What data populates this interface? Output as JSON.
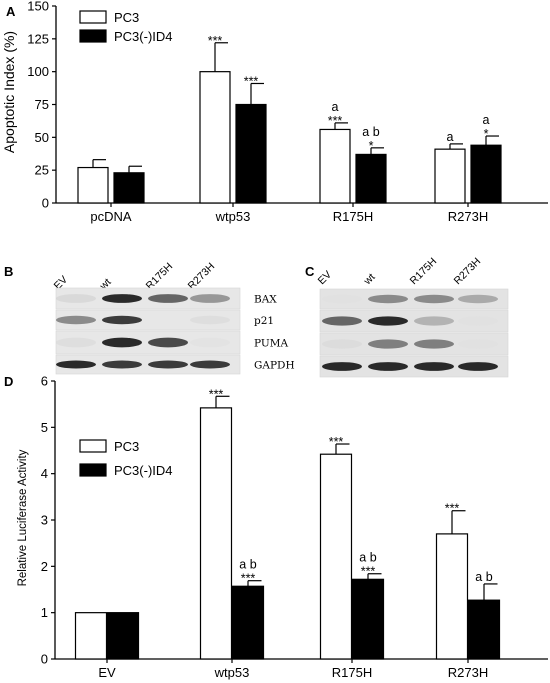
{
  "panels": {
    "A": {
      "letter": "A"
    },
    "B": {
      "letter": "B"
    },
    "C": {
      "letter": "C"
    },
    "D": {
      "letter": "D"
    }
  },
  "chart_data": [
    {
      "panel": "A",
      "type": "bar",
      "ylabel": "Apoptotic Index (%)",
      "xlabel": "",
      "ylim": [
        0,
        150
      ],
      "yticks": [
        0,
        25,
        50,
        75,
        100,
        125,
        150
      ],
      "categories": [
        "pcDNA",
        "wtp53",
        "R175H",
        "R273H"
      ],
      "legend_position": "top-left",
      "series": [
        {
          "name": "PC3",
          "fill": "#ffffff",
          "values": [
            27,
            100,
            56,
            41
          ],
          "errors": [
            6,
            22,
            5,
            4
          ],
          "annotations": [
            [],
            [
              "***"
            ],
            [
              "a",
              "***"
            ],
            [
              "a"
            ]
          ]
        },
        {
          "name": "PC3(-)ID4",
          "fill": "#000000",
          "values": [
            23,
            75,
            37,
            44
          ],
          "errors": [
            5,
            16,
            5,
            7
          ],
          "annotations": [
            [],
            [
              "***"
            ],
            [
              "a b",
              "*"
            ],
            [
              "a",
              "*"
            ]
          ]
        }
      ]
    },
    {
      "panel": "D",
      "type": "bar",
      "ylabel": "Relative Luciferase Activity",
      "xlabel": "",
      "ylim": [
        0,
        6
      ],
      "yticks": [
        0,
        1,
        2,
        3,
        4,
        5,
        6
      ],
      "categories": [
        "EV",
        "wtp53",
        "R175H",
        "R273H"
      ],
      "legend_position": "top-left",
      "series": [
        {
          "name": "PC3",
          "fill": "#ffffff",
          "values": [
            1.0,
            5.42,
            4.42,
            2.7
          ],
          "errors": [
            0,
            0.25,
            0.22,
            0.5
          ],
          "annotations": [
            [],
            [
              "***"
            ],
            [
              "***"
            ],
            [
              "***"
            ]
          ]
        },
        {
          "name": "PC3(-)ID4",
          "fill": "#000000",
          "values": [
            1.0,
            1.57,
            1.72,
            1.27
          ],
          "errors": [
            0,
            0.12,
            0.12,
            0.35
          ],
          "annotations": [
            [],
            [
              "a b",
              "***"
            ],
            [
              "a b",
              "***"
            ],
            [
              "a b"
            ]
          ]
        }
      ]
    }
  ],
  "blots": {
    "B": {
      "lanes": [
        "EV",
        "wt",
        "R175H",
        "R273H"
      ],
      "rows": [
        {
          "protein": "BAX",
          "intensities": [
            0.15,
            0.95,
            0.75,
            0.55
          ]
        },
        {
          "protein": "p21",
          "intensities": [
            0.6,
            0.9,
            0.0,
            0.1
          ]
        },
        {
          "protein": "PUMA",
          "intensities": [
            0.1,
            0.95,
            0.85,
            0.05
          ]
        },
        {
          "protein": "GAPDH",
          "intensities": [
            0.95,
            0.9,
            0.9,
            0.9
          ]
        }
      ]
    },
    "C": {
      "lanes": [
        "EV",
        "wt",
        "R175H",
        "R273H"
      ],
      "rows": [
        {
          "intensities": [
            0.05,
            0.6,
            0.6,
            0.45
          ]
        },
        {
          "intensities": [
            0.75,
            0.95,
            0.4,
            0.05
          ]
        },
        {
          "intensities": [
            0.1,
            0.65,
            0.65,
            0.05
          ]
        },
        {
          "intensities": [
            0.95,
            0.95,
            0.95,
            0.95
          ]
        }
      ]
    }
  }
}
